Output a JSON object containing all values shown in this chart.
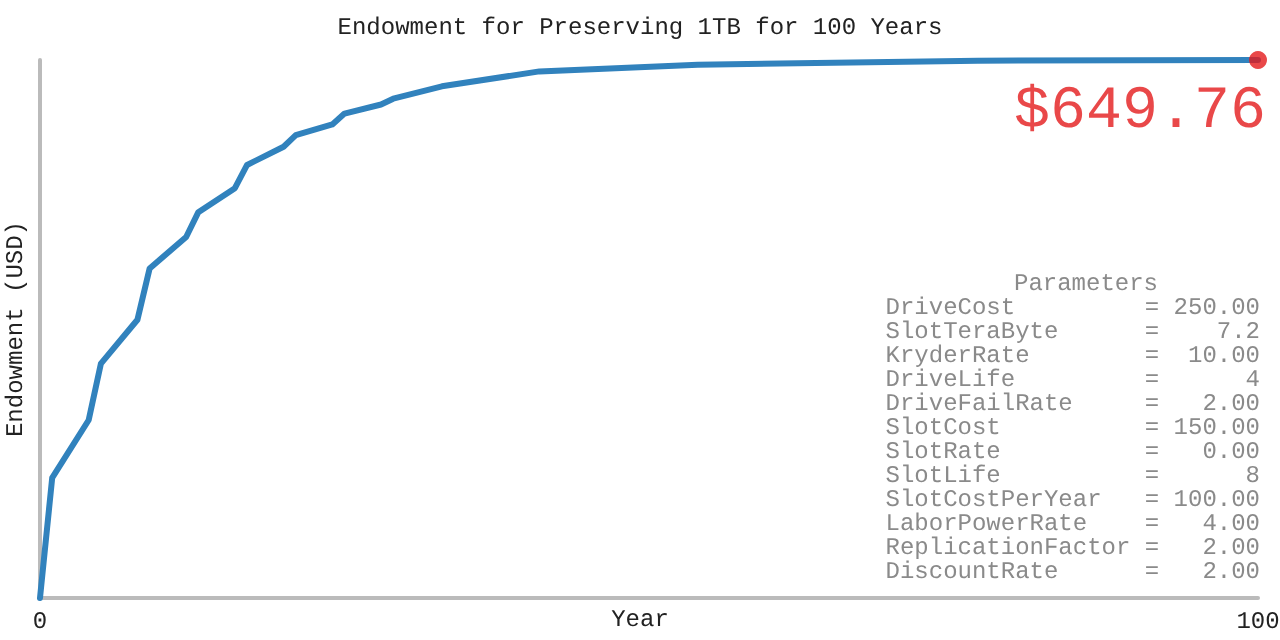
{
  "chart_data": {
    "type": "line",
    "title": "Endowment for Preserving 1TB for 100 Years",
    "xlabel": "Year",
    "ylabel": "Endowment (USD)",
    "xlim": [
      0,
      100
    ],
    "xticks": [
      0,
      100
    ],
    "ylim": [
      0,
      649.76
    ],
    "tick_labels": "x",
    "series": [
      {
        "color": "#3182bd",
        "x": [
          0,
          1,
          4,
          5,
          8,
          9,
          12,
          13,
          16,
          17,
          20,
          21,
          24,
          25,
          28,
          29,
          33,
          41,
          54,
          77,
          100
        ],
        "values": [
          0,
          145,
          215,
          283,
          336,
          398,
          436,
          466,
          495,
          523,
          545,
          559,
          572,
          585,
          596,
          603,
          618,
          636,
          644,
          649,
          649.76
        ]
      },
      {
        "type": "scatter",
        "color": "#e31a1c",
        "x": [
          100
        ],
        "values": [
          649.76
        ],
        "value_labels": [
          "$649.76"
        ]
      }
    ],
    "annotations": [
      "Parameters",
      "DriveCost         = 250.00",
      "SlotTeraByte      =    7.2",
      "KryderRate        =  10.00",
      "DriveLife         =      4",
      "DriveFailRate     =   2.00",
      "SlotCost          = 150.00",
      "SlotRate          =   0.00",
      "SlotLife          =      8",
      "SlotCostPerYear   = 100.00",
      "LaborPowerRate    =   4.00",
      "ReplicationFactor =   2.00",
      "DiscountRate      =   2.00"
    ]
  }
}
